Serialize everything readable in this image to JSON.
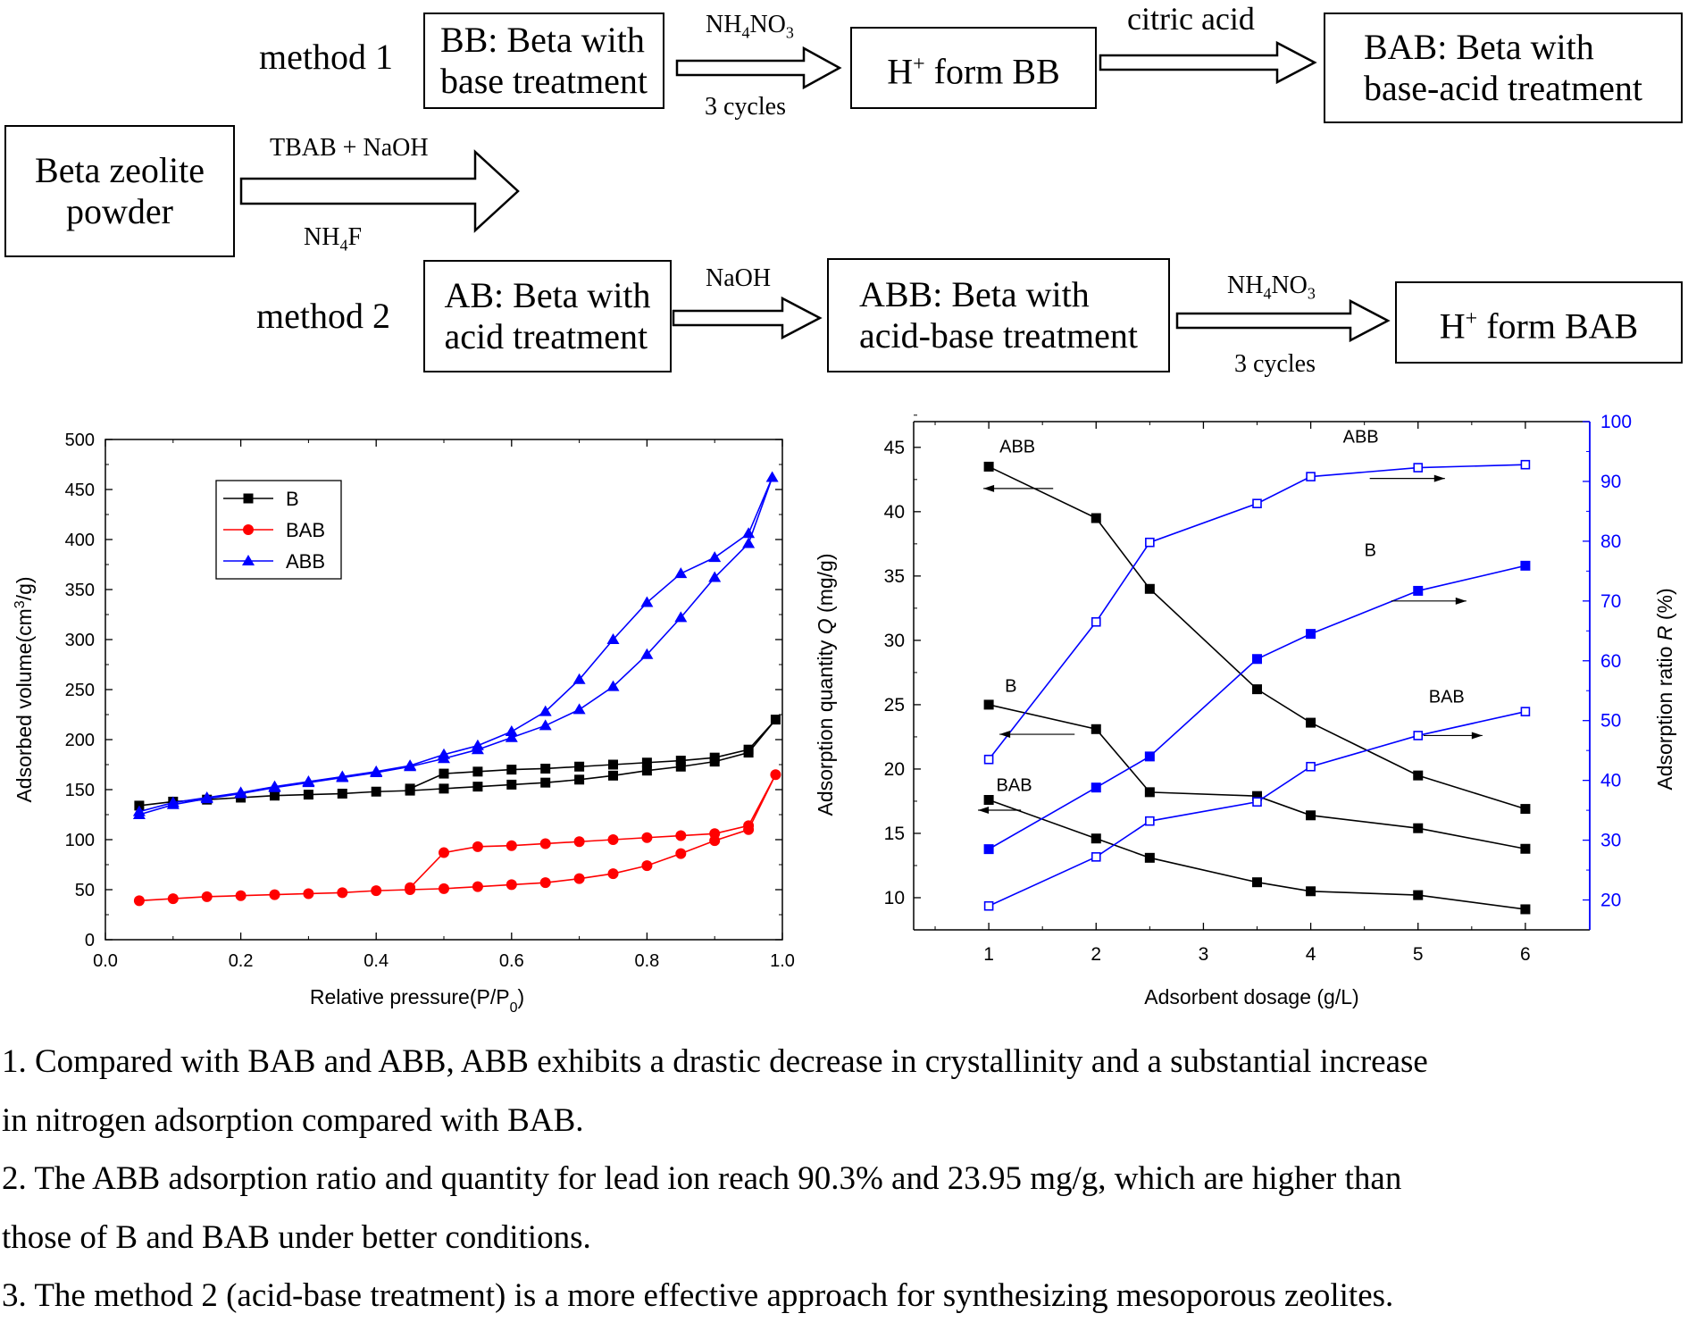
{
  "flow": {
    "method1_label": "method 1",
    "method2_label": "method 2",
    "start_box": [
      "Beta zeolite",
      "powder"
    ],
    "bb_box": [
      "BB: Beta with",
      "base treatment"
    ],
    "h_bb_box": [
      "H",
      "+",
      " form BB"
    ],
    "bab_box": [
      "BAB: Beta with",
      "base-acid treatment"
    ],
    "ab_box": [
      "AB: Beta with",
      "acid treatment"
    ],
    "abb_box": [
      "ABB: Beta with",
      "acid-base treatment"
    ],
    "h_bab_box": [
      "H",
      "+",
      " form BAB"
    ],
    "arrow_main_top": "TBAB + NaOH",
    "arrow_main_bottom": [
      "NH",
      "4",
      "F"
    ],
    "arrow_m1a_top": [
      "NH",
      "4",
      "NO",
      "3"
    ],
    "arrow_m1a_bottom": "3 cycles",
    "arrow_m1b_top": "citric acid",
    "arrow_m2a_top": "NaOH",
    "arrow_m2b_top": [
      "NH",
      "4",
      "NO",
      "3"
    ],
    "arrow_m2b_bottom": "3 cycles"
  },
  "notes": [
    "1. Compared with BAB and ABB, ABB exhibits a drastic decrease in crystallinity and a substantial increase",
    "in nitrogen adsorption compared with BAB.",
    "2. The ABB adsorption ratio and quantity for lead ion reach 90.3% and 23.95 mg/g, which are higher than",
    "those of B and BAB under better conditions.",
    "3. The method 2 (acid-base treatment) is a more effective approach for synthesizing mesoporous zeolites."
  ],
  "chart_data": [
    {
      "type": "line",
      "xlabel": "Relative pressure(P/P0)",
      "ylabel": "Adsorbed volume(cm3/g)",
      "xlim": [
        0.0,
        1.0
      ],
      "ylim": [
        0,
        500
      ],
      "xticks": [
        "0.0",
        "0.2",
        "0.4",
        "0.6",
        "0.8",
        "1.0"
      ],
      "yticks": [
        "0",
        "50",
        "100",
        "150",
        "200",
        "250",
        "300",
        "350",
        "400",
        "450",
        "500"
      ],
      "legend": "top-left",
      "series": [
        {
          "name": "B",
          "color": "#000000",
          "marker": "square",
          "adsorption": [
            [
              0.05,
              134
            ],
            [
              0.1,
              138
            ],
            [
              0.15,
              140
            ],
            [
              0.2,
              142
            ],
            [
              0.25,
              144
            ],
            [
              0.3,
              145
            ],
            [
              0.35,
              146
            ],
            [
              0.4,
              148
            ],
            [
              0.45,
              149
            ],
            [
              0.5,
              151
            ],
            [
              0.55,
              153
            ],
            [
              0.6,
              155
            ],
            [
              0.65,
              157
            ],
            [
              0.7,
              160
            ],
            [
              0.75,
              164
            ],
            [
              0.8,
              169
            ],
            [
              0.85,
              173
            ],
            [
              0.9,
              178
            ],
            [
              0.95,
              187
            ],
            [
              0.99,
              220
            ]
          ],
          "desorption": [
            [
              0.99,
              220
            ],
            [
              0.95,
              190
            ],
            [
              0.9,
              182
            ],
            [
              0.85,
              179
            ],
            [
              0.8,
              177
            ],
            [
              0.75,
              175
            ],
            [
              0.7,
              173
            ],
            [
              0.65,
              171
            ],
            [
              0.6,
              170
            ],
            [
              0.55,
              168
            ],
            [
              0.5,
              166
            ],
            [
              0.45,
              151
            ]
          ]
        },
        {
          "name": "BAB",
          "color": "#ff0000",
          "marker": "circle",
          "adsorption": [
            [
              0.05,
              39
            ],
            [
              0.1,
              41
            ],
            [
              0.15,
              43
            ],
            [
              0.2,
              44
            ],
            [
              0.25,
              45
            ],
            [
              0.3,
              46
            ],
            [
              0.35,
              47
            ],
            [
              0.4,
              49
            ],
            [
              0.45,
              50
            ],
            [
              0.5,
              51
            ],
            [
              0.55,
              53
            ],
            [
              0.6,
              55
            ],
            [
              0.65,
              57
            ],
            [
              0.7,
              61
            ],
            [
              0.75,
              66
            ],
            [
              0.8,
              74
            ],
            [
              0.85,
              86
            ],
            [
              0.9,
              99
            ],
            [
              0.95,
              110
            ],
            [
              0.99,
              165
            ]
          ],
          "desorption": [
            [
              0.99,
              165
            ],
            [
              0.95,
              114
            ],
            [
              0.9,
              106
            ],
            [
              0.85,
              104
            ],
            [
              0.8,
              102
            ],
            [
              0.75,
              100
            ],
            [
              0.7,
              98
            ],
            [
              0.65,
              96
            ],
            [
              0.6,
              94
            ],
            [
              0.55,
              93
            ],
            [
              0.5,
              87
            ],
            [
              0.45,
              52
            ]
          ]
        },
        {
          "name": "ABB",
          "color": "#0000ff",
          "marker": "triangle",
          "adsorption": [
            [
              0.05,
              125
            ],
            [
              0.1,
              135
            ],
            [
              0.15,
              141
            ],
            [
              0.2,
              146
            ],
            [
              0.25,
              152
            ],
            [
              0.3,
              157
            ],
            [
              0.35,
              162
            ],
            [
              0.4,
              167
            ],
            [
              0.45,
              173
            ],
            [
              0.5,
              181
            ],
            [
              0.55,
              190
            ],
            [
              0.6,
              202
            ],
            [
              0.65,
              214
            ],
            [
              0.7,
              230
            ],
            [
              0.75,
              253
            ],
            [
              0.8,
              285
            ],
            [
              0.85,
              322
            ],
            [
              0.9,
              362
            ],
            [
              0.95,
              396
            ],
            [
              0.985,
              462
            ]
          ],
          "desorption": [
            [
              0.985,
              462
            ],
            [
              0.95,
              406
            ],
            [
              0.9,
              382
            ],
            [
              0.85,
              366
            ],
            [
              0.8,
              337
            ],
            [
              0.75,
              300
            ],
            [
              0.7,
              260
            ],
            [
              0.65,
              228
            ],
            [
              0.6,
              208
            ],
            [
              0.55,
              194
            ],
            [
              0.5,
              185
            ],
            [
              0.45,
              174
            ],
            [
              0.4,
              168
            ],
            [
              0.35,
              163
            ],
            [
              0.3,
              158
            ],
            [
              0.25,
              153
            ],
            [
              0.2,
              147
            ],
            [
              0.15,
              142
            ],
            [
              0.1,
              137
            ],
            [
              0.05,
              128
            ]
          ]
        }
      ]
    },
    {
      "type": "line",
      "xlabel": "Adsorbent dosage (g/L)",
      "ylabel_left": "Adsorption quantity Q (mg/g)",
      "ylabel_right": "Adsorption ratio R (%)",
      "xlim": [
        0.3,
        6.6
      ],
      "ylim_left": [
        7.5,
        47
      ],
      "ylim_right": [
        15,
        100
      ],
      "xticks": [
        "1",
        "2",
        "3",
        "4",
        "5",
        "6"
      ],
      "yticks_left": [
        "10",
        "15",
        "20",
        "25",
        "30",
        "35",
        "40",
        "45"
      ],
      "yticks_right": [
        "20",
        "30",
        "40",
        "50",
        "60",
        "70",
        "80",
        "90",
        "100"
      ],
      "series": [
        {
          "name": "ABB",
          "axis": "left",
          "color": "#000000",
          "marker": "filled-square",
          "x": [
            1,
            2,
            2.5,
            3.5,
            4,
            5,
            6
          ],
          "values": [
            43.5,
            39.5,
            34.0,
            26.2,
            23.6,
            19.5,
            16.9
          ]
        },
        {
          "name": "B",
          "axis": "left",
          "color": "#000000",
          "marker": "filled-square",
          "x": [
            1,
            2,
            2.5,
            3.5,
            4,
            5,
            6
          ],
          "values": [
            25.0,
            23.1,
            18.2,
            17.9,
            16.4,
            15.4,
            13.8
          ]
        },
        {
          "name": "BAB",
          "axis": "left",
          "color": "#000000",
          "marker": "filled-square",
          "x": [
            1,
            2,
            2.5,
            3.5,
            4,
            5,
            6
          ],
          "values": [
            17.6,
            14.6,
            13.1,
            11.2,
            10.5,
            10.2,
            9.1
          ]
        },
        {
          "name": "ABB",
          "axis": "right",
          "color": "#0000ff",
          "marker": "open-square",
          "x": [
            1,
            2,
            2.5,
            3.5,
            4,
            5,
            6
          ],
          "values": [
            43.5,
            66.5,
            79.8,
            86.3,
            90.8,
            92.3,
            92.8
          ]
        },
        {
          "name": "B",
          "axis": "right",
          "color": "#0000ff",
          "marker": "filled-square",
          "x": [
            1,
            2,
            2.5,
            3.5,
            4,
            5,
            6
          ],
          "values": [
            28.5,
            38.8,
            44.0,
            60.3,
            64.5,
            71.7,
            75.9
          ]
        },
        {
          "name": "BAB",
          "axis": "right",
          "color": "#0000ff",
          "marker": "open-square",
          "x": [
            1,
            2,
            2.5,
            3.5,
            4,
            5,
            6
          ],
          "values": [
            19.0,
            27.2,
            33.2,
            36.4,
            42.3,
            47.5,
            51.5
          ]
        }
      ]
    }
  ]
}
